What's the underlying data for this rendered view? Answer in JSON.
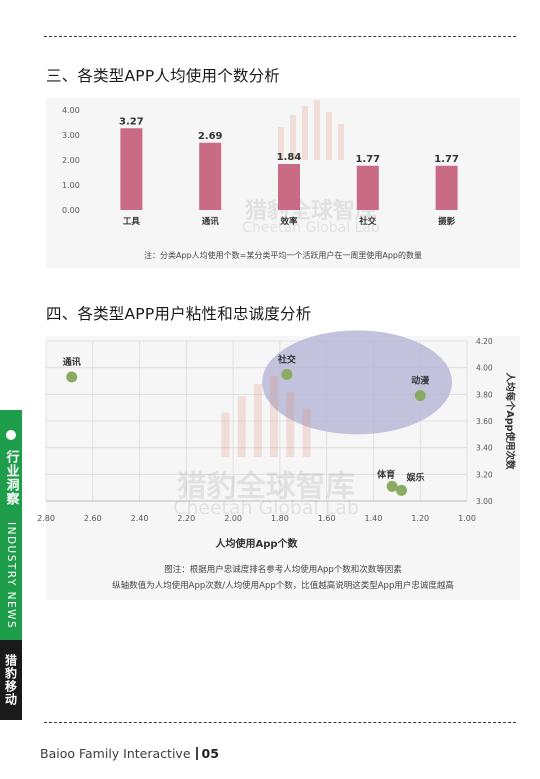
{
  "section3": {
    "title": "三、各类型APP人均使用个数分析"
  },
  "section4": {
    "title": "四、各类型APP用户粘性和忠诚度分析"
  },
  "watermark": {
    "cn": "猎豹全球智库",
    "en": "Cheetah Global Lab"
  },
  "colors": {
    "bar": "#c96b84",
    "point": "#8aab62",
    "ellipse": "#b9b8d7",
    "tab_green": "#1e9e4a"
  },
  "chart_data": [
    {
      "type": "bar",
      "categories": [
        "工具",
        "通讯",
        "效率",
        "社交",
        "摄影"
      ],
      "values": [
        3.27,
        2.69,
        1.84,
        1.77,
        1.77
      ],
      "value_labels": [
        "3.27",
        "2.69",
        "1.84",
        "1.77",
        "1.77"
      ],
      "ylim": [
        0,
        4
      ],
      "y_ticks": [
        "4.00",
        "3.00",
        "2.00",
        "1.00",
        "0.00"
      ],
      "note": "注：分类App人均使用个数=某分类平均一个活跃用户在一周里使用App的数量",
      "grid": false
    },
    {
      "type": "scatter",
      "xlabel": "人均使用App个数",
      "ylabel": "人均每个App使用次数",
      "x_reversed": true,
      "xlim": [
        2.8,
        1.0
      ],
      "ylim": [
        3.0,
        4.2
      ],
      "x_ticks": [
        "2.80",
        "2.60",
        "2.40",
        "2.20",
        "2.00",
        "1.80",
        "1.60",
        "1.40",
        "1.20",
        "1.00"
      ],
      "y_ticks": [
        "4.20",
        "4.00",
        "3.80",
        "3.60",
        "3.40",
        "3.20",
        "3.00"
      ],
      "points": [
        {
          "label": "通讯",
          "x": 2.69,
          "y": 3.93
        },
        {
          "label": "社交",
          "x": 1.77,
          "y": 3.95
        },
        {
          "label": "动漫",
          "x": 1.2,
          "y": 3.79
        },
        {
          "label": "体育",
          "x": 1.32,
          "y": 3.11
        },
        {
          "label": "娱乐",
          "x": 1.28,
          "y": 3.08
        }
      ],
      "highlight": "ellipse around 社交, 动漫",
      "grid": true,
      "notes": [
        "图注：根据用户忠诚度排名参考人均使用App个数和次数等因素",
        "纵轴数值为人均使用App次数/人均使用App个数，比值越高说明这类型App用户忠诚度越高"
      ]
    }
  ],
  "side_tab": {
    "cn": "行业洞察",
    "en": "INDUSTRY NEWS",
    "brand": "猎豹移动"
  },
  "footer": {
    "company": "Baioo Family Interactive",
    "page": "05"
  }
}
